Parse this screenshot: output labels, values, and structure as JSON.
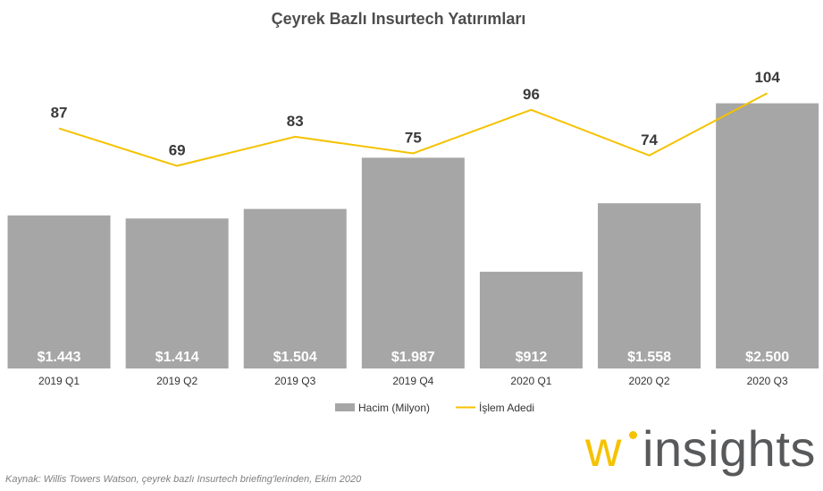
{
  "chart_data": {
    "type": "bar",
    "title": "Çeyrek Bazlı Insurtech Yatırımları",
    "categories": [
      "2019 Q1",
      "2019 Q2",
      "2019 Q3",
      "2019 Q4",
      "2020 Q1",
      "2020 Q2",
      "2020 Q3"
    ],
    "series": [
      {
        "name": "Hacim (Milyon)",
        "type": "bar",
        "values": [
          1443,
          1414,
          1504,
          1987,
          912,
          1558,
          2500
        ],
        "labels": [
          "$1.443",
          "$1.414",
          "$1.504",
          "$1.987",
          "$912",
          "$1.558",
          "$2.500"
        ],
        "color": "#a6a6a6"
      },
      {
        "name": "İşlem Adedi",
        "type": "line",
        "values": [
          87,
          69,
          83,
          75,
          96,
          74,
          104
        ],
        "labels": [
          "87",
          "69",
          "83",
          "75",
          "96",
          "74",
          "104"
        ],
        "color": "#f5c200"
      }
    ],
    "legend": "bottom",
    "grid": false
  },
  "source_text": "Kaynak: Willis Towers Watson, çeyrek bazlı Insurtech briefing'lerinden, Ekim 2020",
  "logo": {
    "mark": "w",
    "text": "insights",
    "colors": {
      "mark": "#f5c200",
      "text": "#58595b"
    }
  }
}
